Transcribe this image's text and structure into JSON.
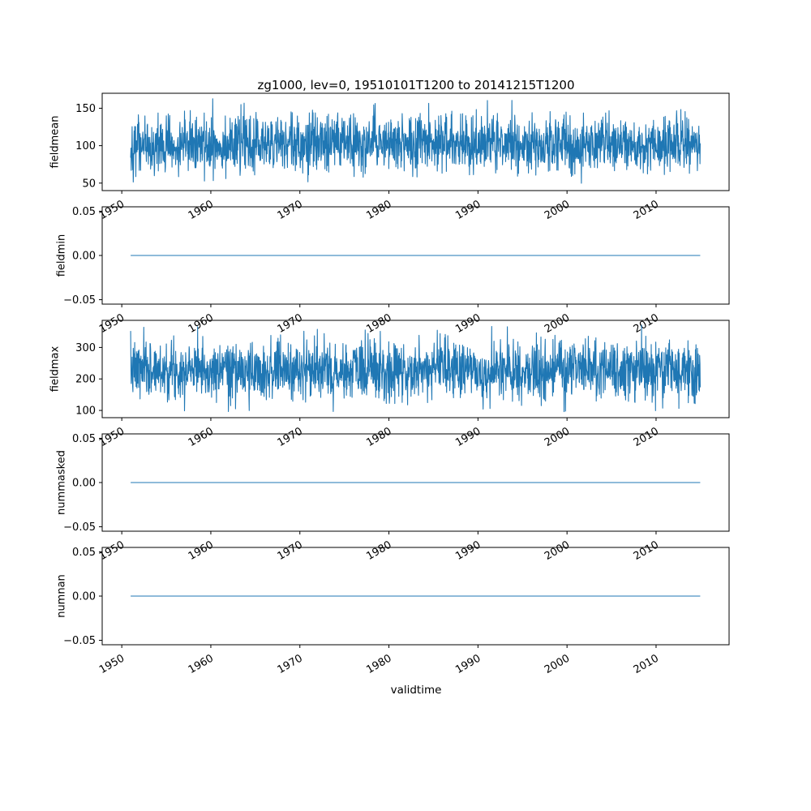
{
  "chart_data": {
    "type": "line",
    "title": "zg1000, lev=0, 19510101T1200 to 20141215T1200",
    "xlabel": "validtime",
    "line_color": "#1f77b4",
    "axis_color": "#000000",
    "xlim": [
      1947.8,
      2018.2
    ],
    "x_data_range": [
      1951.0,
      2014.96
    ],
    "xticks": [
      1950,
      1960,
      1970,
      1980,
      1990,
      2000,
      2010
    ],
    "xtick_labels": [
      "1950",
      "1960",
      "1970",
      "1980",
      "1990",
      "2000",
      "2010"
    ],
    "xtick_rotation_deg": 30,
    "grid": false,
    "legend": "none",
    "subplots": [
      {
        "ylabel": "fieldmean",
        "yticks": [
          50,
          100,
          150
        ],
        "ytick_labels": [
          "50",
          "100",
          "150"
        ],
        "ylim": [
          40,
          170
        ],
        "signal": {
          "kind": "noise",
          "mean": 102,
          "std": 19,
          "clip_min": 48,
          "clip_max": 163,
          "n_points": 2000,
          "seed": 42
        },
        "description": "dense noisy daily time series oscillating around ~100, range ~48-160"
      },
      {
        "ylabel": "fieldmin",
        "yticks": [
          -0.05,
          0.0,
          0.05
        ],
        "ytick_labels": [
          "−0.05",
          "0.00",
          "0.05"
        ],
        "ylim": [
          -0.055,
          0.055
        ],
        "signal": {
          "kind": "constant",
          "value": 0
        },
        "description": "constant zero line for whole period"
      },
      {
        "ylabel": "fieldmax",
        "yticks": [
          100,
          200,
          300
        ],
        "ytick_labels": [
          "100",
          "200",
          "300"
        ],
        "ylim": [
          77,
          386
        ],
        "signal": {
          "kind": "noise",
          "mean": 228,
          "std": 45,
          "clip_min": 96,
          "clip_max": 372,
          "n_points": 2000,
          "seed": 7
        },
        "description": "dense noisy daily time series oscillating around ~225, range ~100-370"
      },
      {
        "ylabel": "nummasked",
        "yticks": [
          -0.05,
          0.0,
          0.05
        ],
        "ytick_labels": [
          "−0.05",
          "0.00",
          "0.05"
        ],
        "ylim": [
          -0.055,
          0.055
        ],
        "signal": {
          "kind": "constant",
          "value": 0
        },
        "description": "constant zero line for whole period"
      },
      {
        "ylabel": "numnan",
        "yticks": [
          -0.05,
          0.0,
          0.05
        ],
        "ytick_labels": [
          "−0.05",
          "0.00",
          "0.05"
        ],
        "ylim": [
          -0.055,
          0.055
        ],
        "signal": {
          "kind": "constant",
          "value": 0
        },
        "description": "constant zero line for whole period"
      }
    ]
  }
}
